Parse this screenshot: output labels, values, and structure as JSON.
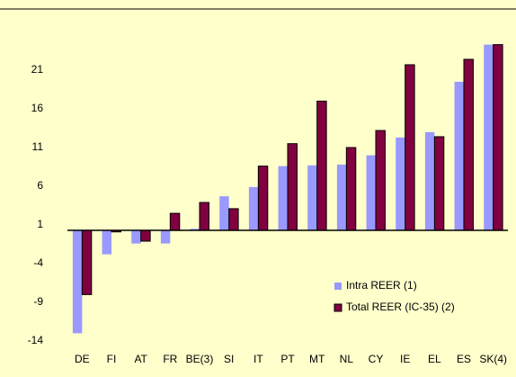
{
  "chart_data": {
    "type": "bar",
    "categories": [
      "DE",
      "FI",
      "AT",
      "FR",
      "BE(3)",
      "SI",
      "IT",
      "PT",
      "MT",
      "NL",
      "CY",
      "IE",
      "EL",
      "ES",
      "SK(4)"
    ],
    "series": [
      {
        "name": "Intra REER (1)",
        "color": "#9999ff",
        "values": [
          -12.3,
          -2.1,
          -0.7,
          -0.7,
          1.2,
          5.4,
          6.6,
          9.3,
          9.4,
          9.5,
          10.7,
          13.0,
          13.7,
          20.2,
          25
        ]
      },
      {
        "name": "Total REER (IC-35) (2)",
        "color": "#800040",
        "values": [
          -7.3,
          0.8,
          -0.4,
          3.2,
          4.6,
          3.8,
          9.3,
          12.2,
          17.7,
          11.7,
          13.9,
          22.4,
          13.1,
          23.1,
          25
        ]
      }
    ],
    "ylim": [
      -14,
      25
    ],
    "yticks": [
      -14,
      -9,
      -4,
      1,
      6,
      11,
      16,
      21
    ],
    "x_axis_crosses": 1,
    "legend": "lower right"
  }
}
